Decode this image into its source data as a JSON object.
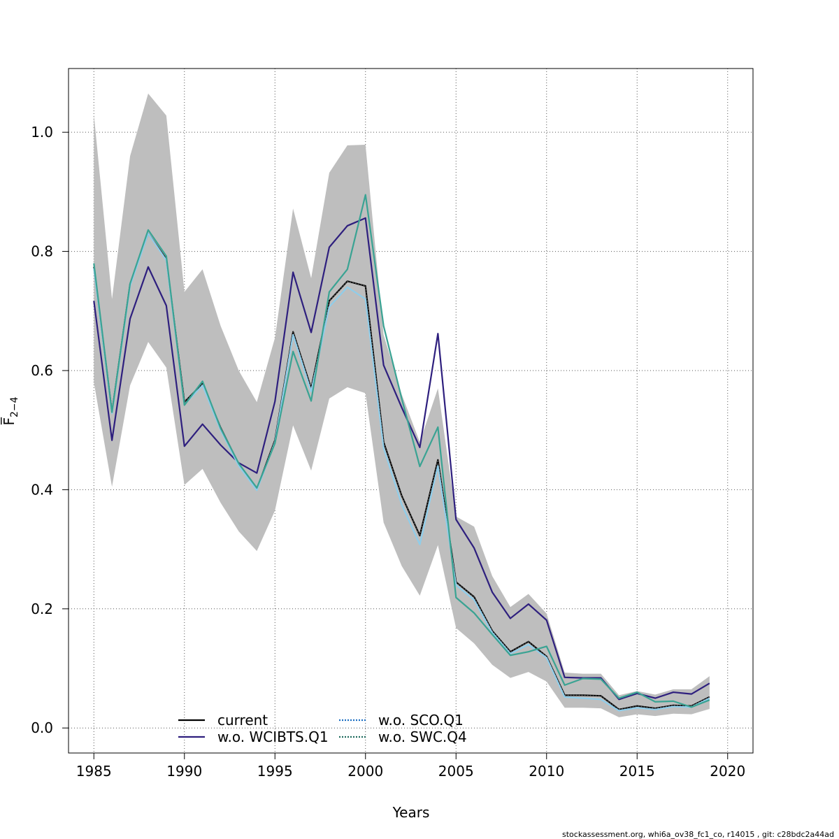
{
  "chart_data": {
    "type": "line",
    "title": "",
    "xlabel": "Years",
    "ylabel": "F̅",
    "ylabel_sub": "2−4",
    "xlim": [
      1983.6,
      2021.4
    ],
    "ylim": [
      -0.042,
      1.107
    ],
    "x_ticks": [
      1985,
      1990,
      1995,
      2000,
      2005,
      2010,
      2015,
      2020
    ],
    "x_tick_labels": [
      "1985",
      "1990",
      "1995",
      "2000",
      "2005",
      "2010",
      "2015",
      "2020"
    ],
    "y_ticks": [
      0.0,
      0.2,
      0.4,
      0.6,
      0.8,
      1.0
    ],
    "y_tick_labels": [
      "0.0",
      "0.2",
      "0.4",
      "0.6",
      "0.8",
      "1.0"
    ],
    "grid": true,
    "legend_position": "bottom-left",
    "x": [
      1985,
      1986,
      1987,
      1988,
      1989,
      1990,
      1991,
      1992,
      1993,
      1994,
      1995,
      1996,
      1997,
      1998,
      1999,
      2000,
      2001,
      2002,
      2003,
      2004,
      2005,
      2006,
      2007,
      2008,
      2009,
      2010,
      2011,
      2012,
      2013,
      2014,
      2015,
      2016,
      2017,
      2018,
      2019
    ],
    "band": {
      "color": "#bebebe",
      "upper": [
        1.03,
        0.72,
        0.96,
        1.065,
        1.028,
        0.732,
        0.77,
        0.675,
        0.6,
        0.547,
        0.655,
        0.872,
        0.755,
        0.932,
        0.978,
        0.979,
        0.66,
        0.56,
        0.48,
        0.57,
        0.355,
        0.338,
        0.255,
        0.203,
        0.225,
        0.192,
        0.093,
        0.091,
        0.091,
        0.055,
        0.062,
        0.056,
        0.065,
        0.065,
        0.087
      ],
      "lower": [
        0.58,
        0.405,
        0.575,
        0.648,
        0.605,
        0.408,
        0.435,
        0.378,
        0.33,
        0.297,
        0.365,
        0.508,
        0.432,
        0.553,
        0.572,
        0.562,
        0.345,
        0.272,
        0.222,
        0.307,
        0.168,
        0.142,
        0.106,
        0.084,
        0.094,
        0.078,
        0.034,
        0.034,
        0.033,
        0.018,
        0.023,
        0.02,
        0.024,
        0.023,
        0.032
      ]
    },
    "series": [
      {
        "name": "current",
        "color": "#000000",
        "dash": "",
        "values": [
          0.774,
          0.53,
          0.745,
          0.83,
          0.787,
          0.547,
          0.578,
          0.504,
          0.443,
          0.401,
          0.483,
          0.665,
          0.57,
          0.717,
          0.75,
          0.742,
          0.48,
          0.39,
          0.323,
          0.45,
          0.245,
          0.22,
          0.163,
          0.128,
          0.145,
          0.12,
          0.055,
          0.055,
          0.054,
          0.031,
          0.037,
          0.033,
          0.038,
          0.037,
          0.052
        ]
      },
      {
        "name": "w.o. WCIBTS.Q1",
        "color": "#2e1f7e",
        "dash": "",
        "values": [
          0.717,
          0.483,
          0.687,
          0.774,
          0.709,
          0.473,
          0.51,
          0.475,
          0.445,
          0.428,
          0.548,
          0.765,
          0.664,
          0.807,
          0.843,
          0.856,
          0.609,
          0.538,
          0.471,
          0.662,
          0.35,
          0.302,
          0.228,
          0.184,
          0.208,
          0.181,
          0.085,
          0.084,
          0.084,
          0.048,
          0.058,
          0.05,
          0.06,
          0.057,
          0.075
        ]
      },
      {
        "name": "w.o. SCO.Q1",
        "color": "#8fcdea",
        "dash": "",
        "values": [
          0.772,
          0.528,
          0.742,
          0.83,
          0.785,
          0.543,
          0.575,
          0.5,
          0.44,
          0.399,
          0.48,
          0.66,
          0.565,
          0.707,
          0.74,
          0.72,
          0.47,
          0.375,
          0.308,
          0.44,
          0.24,
          0.215,
          0.16,
          0.125,
          0.14,
          0.118,
          0.052,
          0.05,
          0.048,
          0.029,
          0.034,
          0.031,
          0.036,
          0.035,
          0.05
        ]
      },
      {
        "name": "w.o. SWC.Q4",
        "color": "#3aa393",
        "dash": "",
        "values": [
          0.78,
          0.53,
          0.746,
          0.836,
          0.792,
          0.542,
          0.582,
          0.503,
          0.444,
          0.403,
          0.478,
          0.632,
          0.549,
          0.732,
          0.77,
          0.895,
          0.675,
          0.553,
          0.439,
          0.505,
          0.219,
          0.193,
          0.157,
          0.122,
          0.128,
          0.137,
          0.072,
          0.083,
          0.082,
          0.05,
          0.06,
          0.044,
          0.045,
          0.035,
          0.047
        ]
      }
    ],
    "legend": [
      {
        "label": "current",
        "color": "#000000",
        "style": "solid"
      },
      {
        "label": "w.o. WCIBTS.Q1",
        "color": "#2e1f7e",
        "style": "solid"
      },
      {
        "label": "w.o. SCO.Q1",
        "color": "#1a6ec2",
        "style": "dotted"
      },
      {
        "label": "w.o. SWC.Q4",
        "color": "#1f6b5e",
        "style": "dotted"
      }
    ]
  },
  "footer": "stockassessment.org, whi6a_ov38_fc1_co, r14015 , git: c28bdc2a44ad"
}
